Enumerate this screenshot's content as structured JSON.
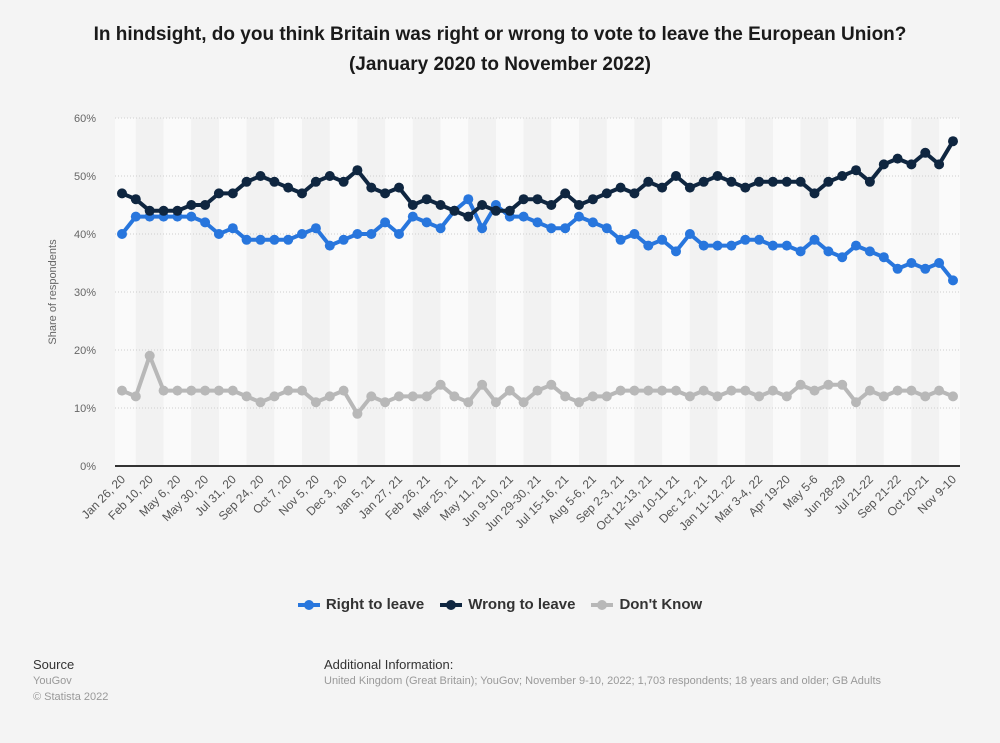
{
  "chart_data": {
    "type": "line",
    "title": "In hindsight, do you think Britain was right or wrong to vote to leave the European Union? (January 2020 to November 2022)",
    "xlabel": "",
    "ylabel": "Share of respondents",
    "ylim": [
      0,
      60
    ],
    "yticks": [
      "0%",
      "10%",
      "20%",
      "30%",
      "40%",
      "50%",
      "60%"
    ],
    "ytick_values": [
      0,
      10,
      20,
      30,
      40,
      50,
      60
    ],
    "grid": true,
    "legend_position": "bottom",
    "x_tick_labels": [
      "Jan 26, 20",
      "Feb 10, 20",
      "May 6, 20",
      "May 30, 20",
      "Jul 31, 20",
      "Sep 24, 20",
      "Oct 7, 20",
      "Nov 5, 20",
      "Dec 3, 20",
      "Jan 5, 21",
      "Jan 27, 21",
      "Feb 26, 21",
      "Mar 25, 21",
      "May 11, 21",
      "Jun 9-10, 21",
      "Jun 29-30, 21",
      "Jul 15-16, 21",
      "Aug 5-6, 21",
      "Sep 2-3, 21",
      "Oct 12-13, 21",
      "Nov 10-11 21",
      "Dec 1-2, 21",
      "Jan 11-12, 22",
      "Mar 3-4, 22",
      "Apr 19-20",
      "May 5-6",
      "Jun 28-29",
      "Jul 21-22",
      "Sep 21-22",
      "Oct 20-21",
      "Nov 9-10"
    ],
    "point_count": 61,
    "series": [
      {
        "name": "Right to leave",
        "color": "#2876dd",
        "values": [
          40,
          43,
          43,
          43,
          43,
          43,
          42,
          40,
          41,
          39,
          39,
          39,
          39,
          40,
          41,
          38,
          39,
          40,
          40,
          42,
          40,
          43,
          42,
          41,
          44,
          46,
          41,
          45,
          43,
          43,
          42,
          41,
          41,
          43,
          42,
          41,
          39,
          40,
          38,
          39,
          37,
          40,
          38,
          38,
          38,
          39,
          39,
          38,
          38,
          37,
          39,
          37,
          36,
          38,
          37,
          36,
          34,
          35,
          34,
          35,
          32
        ]
      },
      {
        "name": "Wrong to leave",
        "color": "#0f2640",
        "values": [
          47,
          46,
          44,
          44,
          44,
          45,
          45,
          47,
          47,
          49,
          50,
          49,
          48,
          47,
          49,
          50,
          49,
          51,
          48,
          47,
          48,
          45,
          46,
          45,
          44,
          43,
          45,
          44,
          44,
          46,
          46,
          45,
          47,
          45,
          46,
          47,
          48,
          47,
          49,
          48,
          50,
          48,
          49,
          50,
          49,
          48,
          49,
          49,
          49,
          49,
          47,
          49,
          50,
          51,
          49,
          52,
          53,
          52,
          54,
          52,
          56
        ]
      },
      {
        "name": "Don't Know",
        "color": "#b8b8b8",
        "values": [
          13,
          12,
          19,
          13,
          13,
          13,
          13,
          13,
          13,
          12,
          11,
          12,
          13,
          13,
          11,
          12,
          13,
          9,
          12,
          11,
          12,
          12,
          12,
          14,
          12,
          11,
          14,
          11,
          13,
          11,
          13,
          14,
          12,
          11,
          12,
          12,
          13,
          13,
          13,
          13,
          13,
          12,
          13,
          12,
          13,
          13,
          12,
          13,
          12,
          14,
          13,
          14,
          14,
          11,
          13,
          12,
          13,
          13,
          12,
          13,
          12
        ]
      }
    ]
  },
  "legend": [
    {
      "label": "Right to leave",
      "color": "#2876dd"
    },
    {
      "label": "Wrong to leave",
      "color": "#0f2640"
    },
    {
      "label": "Don't Know",
      "color": "#b8b8b8"
    }
  ],
  "footer": {
    "source_heading": "Source",
    "source": "YouGov",
    "copyright": "© Statista 2022",
    "info_heading": "Additional Information:",
    "info": "United Kingdom (Great Britain); YouGov; November 9-10, 2022; 1,703 respondents; 18 years and older; GB Adults"
  }
}
